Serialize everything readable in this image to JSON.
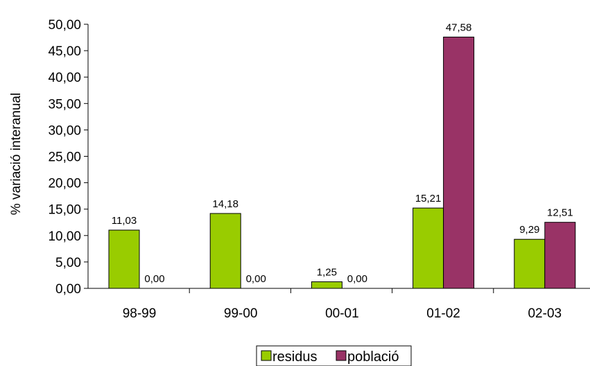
{
  "chart_data": {
    "type": "bar",
    "title": "",
    "xlabel": "",
    "ylabel": "% variació interanual",
    "categories": [
      "98-99",
      "99-00",
      "00-01",
      "01-02",
      "02-03"
    ],
    "series": [
      {
        "name": "residus",
        "color": "#99CC00",
        "values": [
          11.03,
          14.18,
          1.25,
          15.21,
          9.29
        ],
        "labels": [
          "11,03",
          "14,18",
          "1,25",
          "15,21",
          "9,29"
        ]
      },
      {
        "name": "població",
        "color": "#993366",
        "values": [
          0.0,
          0.0,
          0.0,
          47.58,
          12.51
        ],
        "labels": [
          "0,00",
          "0,00",
          "0,00",
          "47,58",
          "12,51"
        ]
      }
    ],
    "ylim": [
      0,
      50
    ],
    "yticks": [
      0,
      5,
      10,
      15,
      20,
      25,
      30,
      35,
      40,
      45,
      50
    ],
    "ytick_labels": [
      "0,00",
      "5,00",
      "10,00",
      "15,00",
      "20,00",
      "25,00",
      "30,00",
      "35,00",
      "40,00",
      "45,00",
      "50,00"
    ],
    "grid": false,
    "legend": "bottom"
  }
}
